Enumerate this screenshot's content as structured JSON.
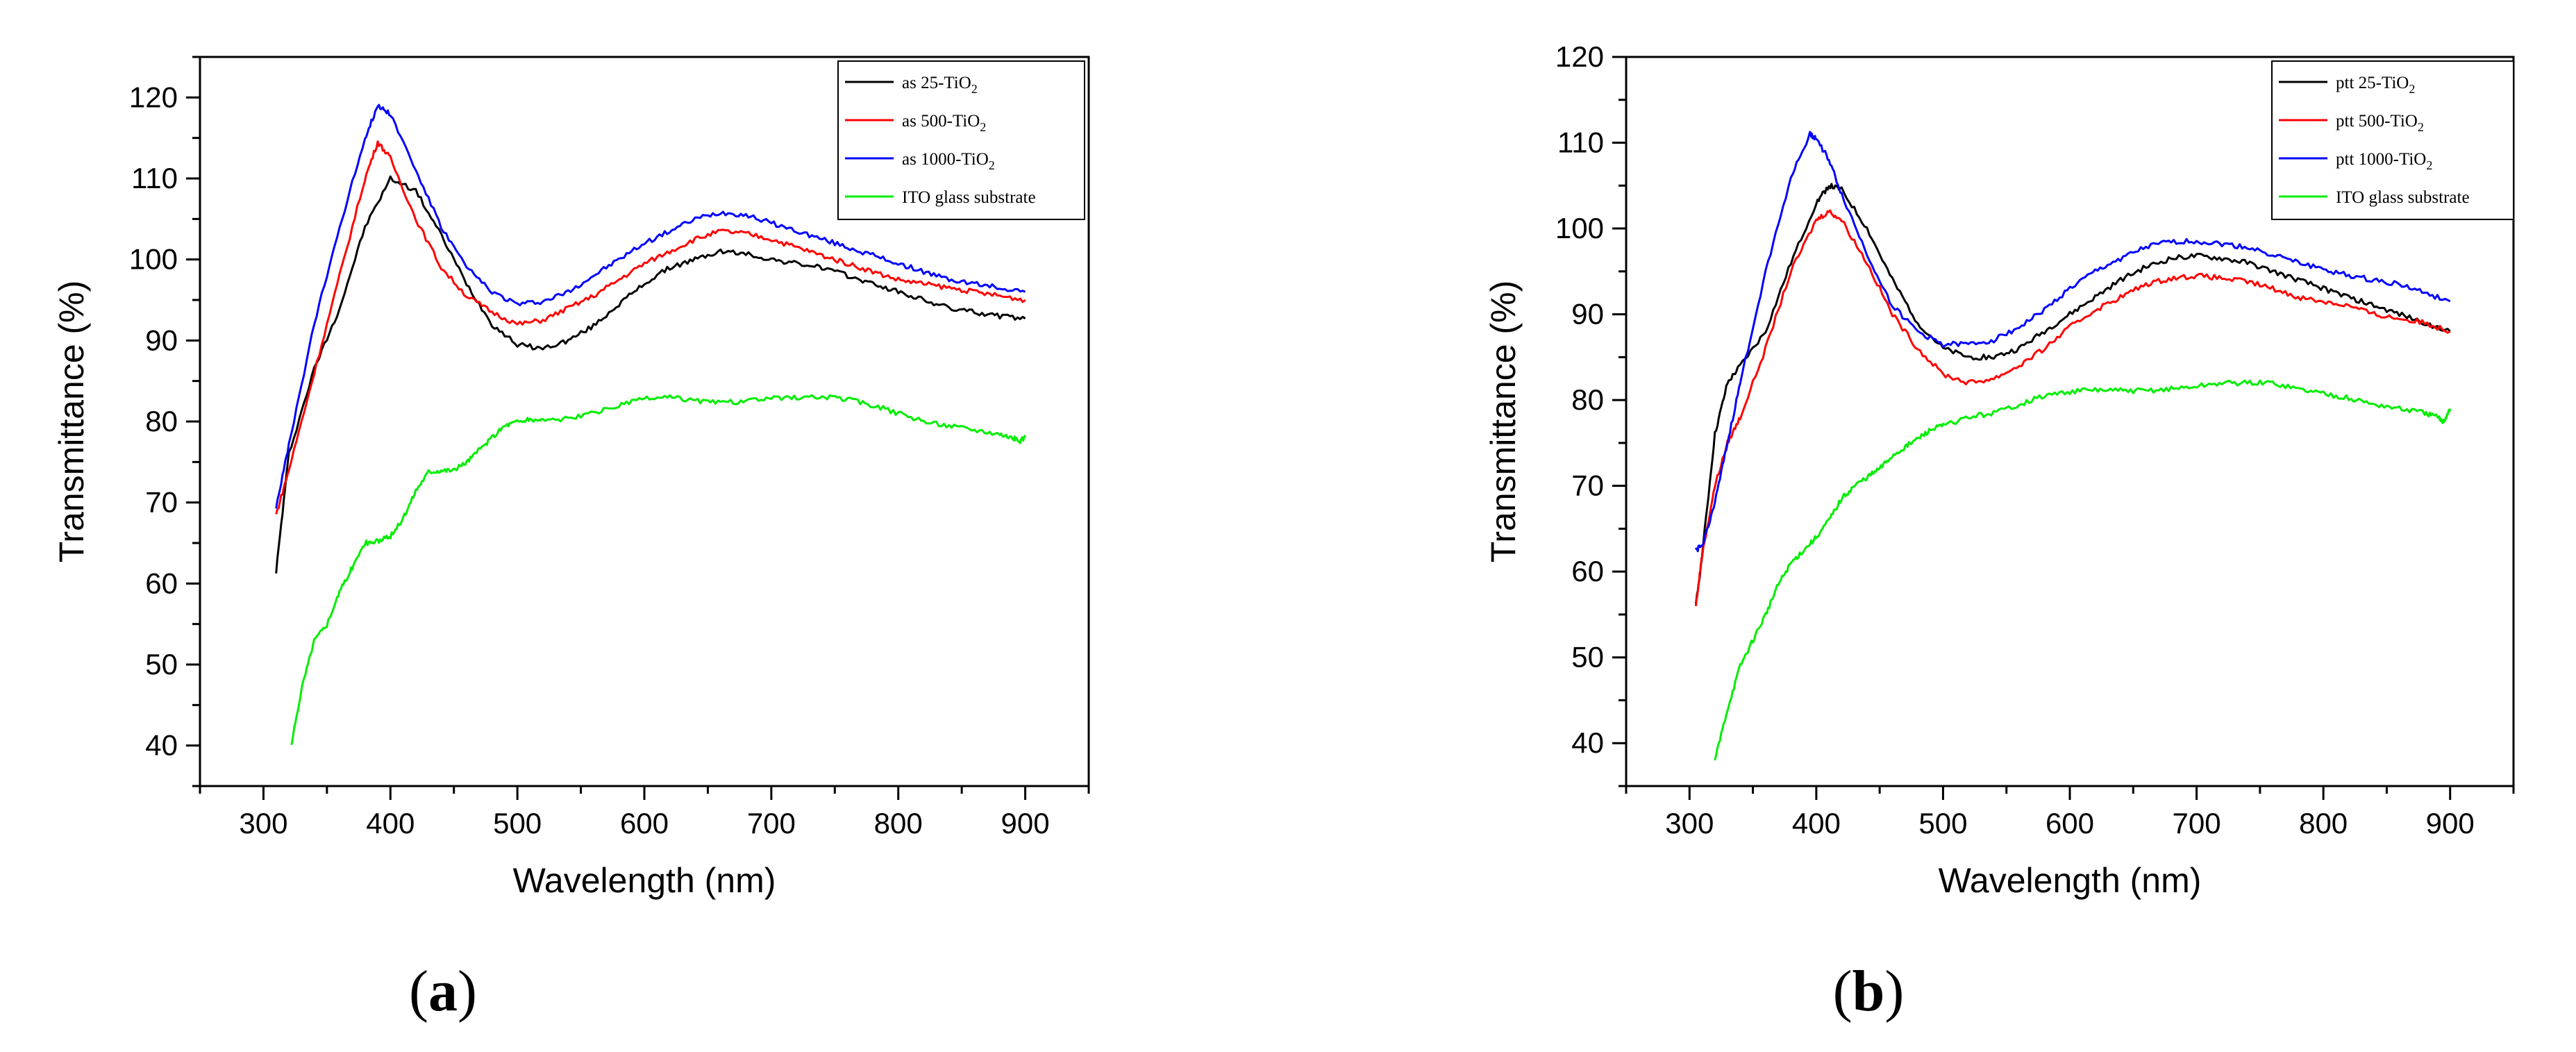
{
  "chart_data": [
    {
      "type": "line",
      "panel_label": "a",
      "title": "",
      "xlabel": "Wavelength (nm)",
      "ylabel": "Transmittance (%)",
      "xlim": [
        250,
        950
      ],
      "ylim": [
        35,
        125
      ],
      "x_ticks": [
        300,
        400,
        500,
        600,
        700,
        800,
        900
      ],
      "y_ticks": [
        40,
        50,
        60,
        70,
        80,
        90,
        100,
        110,
        120
      ],
      "legend_position": "top-right",
      "series": [
        {
          "name_main": "as 25-TiO",
          "name_sub": "2",
          "color": "#000000",
          "x": [
            310,
            320,
            340,
            360,
            380,
            400,
            420,
            440,
            460,
            480,
            500,
            520,
            540,
            560,
            580,
            600,
            620,
            640,
            660,
            680,
            700,
            720,
            740,
            760,
            780,
            800,
            820,
            840,
            860,
            880,
            900
          ],
          "y": [
            61.5,
            76,
            86.5,
            94,
            104,
            110,
            108.5,
            103,
            97,
            92,
            89.5,
            89,
            90,
            91.8,
            94.5,
            97,
            99,
            100,
            101,
            100.7,
            100,
            99.5,
            99,
            98,
            97,
            96,
            95,
            94,
            93.5,
            93,
            92.7
          ]
        },
        {
          "name_main": "as 500-TiO",
          "name_sub": "2",
          "color": "#ff0000",
          "x": [
            310,
            320,
            340,
            360,
            380,
            390,
            400,
            420,
            440,
            460,
            480,
            500,
            520,
            540,
            560,
            580,
            600,
            620,
            640,
            660,
            680,
            700,
            720,
            740,
            760,
            780,
            800,
            820,
            840,
            860,
            880,
            900
          ],
          "y": [
            68.5,
            74,
            86,
            98,
            110,
            114.5,
            112.5,
            105,
            99,
            95.5,
            93.5,
            92,
            92.5,
            94,
            95.5,
            97.5,
            99.5,
            101,
            102.5,
            103.5,
            103.2,
            102.5,
            101.5,
            100.5,
            99.5,
            98.5,
            97.5,
            97,
            96.5,
            96,
            95.5,
            95
          ]
        },
        {
          "name_main": "as 1000-TiO",
          "name_sub": "2",
          "color": "#0000ff",
          "x": [
            310,
            320,
            340,
            360,
            380,
            390,
            400,
            420,
            440,
            460,
            480,
            500,
            520,
            540,
            560,
            580,
            600,
            620,
            640,
            660,
            680,
            700,
            720,
            740,
            760,
            780,
            800,
            820,
            840,
            860,
            880,
            900
          ],
          "y": [
            69.5,
            77,
            92,
            104,
            115,
            119,
            118,
            111,
            104,
            99,
            96,
            94.5,
            94.8,
            96,
            98,
            100,
            102,
            103.5,
            105,
            105.8,
            105.5,
            104.5,
            103.5,
            102.5,
            101.5,
            100.5,
            99.5,
            98.5,
            97.5,
            97,
            96.5,
            96
          ]
        },
        {
          "name_main": "ITO glass substrate",
          "name_sub": "",
          "color": "#00ee00",
          "x": [
            322,
            330,
            340,
            350,
            360,
            370,
            380,
            390,
            400,
            410,
            420,
            430,
            440,
            450,
            460,
            470,
            480,
            490,
            500,
            510,
            520,
            540,
            560,
            580,
            600,
            620,
            640,
            660,
            680,
            700,
            720,
            740,
            760,
            780,
            800,
            820,
            840,
            860,
            880,
            890,
            895,
            900
          ],
          "y": [
            40,
            47,
            53,
            55,
            59,
            62,
            65,
            65.2,
            65.8,
            68,
            71.5,
            73.8,
            74,
            74,
            75,
            76.5,
            78,
            79.5,
            80,
            80.2,
            80.2,
            80.3,
            81,
            82,
            82.8,
            83,
            82.6,
            82.3,
            82.5,
            82.8,
            83,
            83,
            82.8,
            82,
            81,
            80,
            79.5,
            79,
            78.5,
            78,
            77.5,
            78
          ]
        }
      ]
    },
    {
      "type": "line",
      "panel_label": "b",
      "title": "",
      "xlabel": "Wavelength (nm)",
      "ylabel": "Transmittance (%)",
      "xlim": [
        250,
        950
      ],
      "ylim": [
        35,
        120
      ],
      "x_ticks": [
        300,
        400,
        500,
        600,
        700,
        800,
        900
      ],
      "y_ticks": [
        40,
        50,
        60,
        70,
        80,
        90,
        100,
        110,
        120
      ],
      "legend_position": "top-right",
      "series": [
        {
          "name_main": "ptt 25-TiO",
          "name_sub": "2",
          "color": "#000000",
          "x": [
            305,
            310,
            320,
            330,
            340,
            360,
            380,
            400,
            410,
            420,
            440,
            460,
            480,
            500,
            520,
            540,
            560,
            580,
            600,
            620,
            640,
            660,
            680,
            700,
            720,
            740,
            760,
            780,
            800,
            820,
            840,
            860,
            880,
            900
          ],
          "y": [
            56,
            62,
            76,
            82,
            84,
            88,
            96,
            103,
            105,
            104.5,
            100,
            94,
            89,
            86,
            85,
            85,
            86,
            88,
            90,
            92,
            94,
            95.5,
            96.5,
            96.8,
            96.5,
            96,
            95,
            94,
            93,
            92,
            91,
            90,
            89,
            88
          ]
        },
        {
          "name_main": "ptt 500-TiO",
          "name_sub": "2",
          "color": "#ff0000",
          "x": [
            305,
            310,
            320,
            330,
            340,
            360,
            380,
            400,
            410,
            420,
            440,
            460,
            480,
            500,
            520,
            540,
            560,
            580,
            600,
            620,
            640,
            660,
            680,
            700,
            720,
            740,
            760,
            780,
            800,
            820,
            840,
            860,
            880,
            900
          ],
          "y": [
            56,
            62,
            70,
            75,
            78,
            86,
            95,
            101,
            102,
            101,
            96,
            90,
            86,
            83,
            82,
            82.5,
            84,
            86,
            88.5,
            90.5,
            92,
            93.5,
            94.2,
            94.5,
            94.2,
            93.8,
            93,
            92,
            91.5,
            91,
            90,
            89.5,
            89,
            88
          ]
        },
        {
          "name_main": "ptt 1000-TiO",
          "name_sub": "2",
          "color": "#0000ff",
          "x": [
            305,
            310,
            320,
            330,
            340,
            360,
            380,
            395,
            400,
            410,
            420,
            440,
            460,
            480,
            500,
            520,
            540,
            560,
            580,
            600,
            620,
            640,
            660,
            680,
            700,
            720,
            740,
            760,
            780,
            800,
            820,
            840,
            860,
            880,
            900
          ],
          "y": [
            62.5,
            63,
            68,
            75,
            82,
            95,
            106,
            111,
            110.5,
            108,
            104,
            97,
            91,
            88,
            86.5,
            86.5,
            87,
            88.5,
            90.5,
            93,
            95,
            96.5,
            97.8,
            98.5,
            98.5,
            98.2,
            97.8,
            97,
            96,
            95.3,
            94.5,
            94,
            93.5,
            92.5,
            91.5
          ]
        },
        {
          "name_main": "ITO glass substrate",
          "name_sub": "",
          "color": "#00ee00",
          "x": [
            320,
            330,
            340,
            350,
            360,
            370,
            380,
            390,
            400,
            410,
            420,
            430,
            440,
            450,
            460,
            470,
            480,
            490,
            500,
            520,
            540,
            560,
            580,
            600,
            620,
            640,
            660,
            680,
            700,
            720,
            740,
            760,
            780,
            800,
            820,
            840,
            860,
            880,
            890,
            895,
            900
          ],
          "y": [
            38,
            44,
            49,
            52,
            55,
            58.5,
            61,
            62.5,
            64,
            66,
            68.5,
            70,
            71,
            72,
            73.5,
            74.5,
            75.5,
            76.5,
            77,
            78,
            78.5,
            79.5,
            80.5,
            81,
            81.2,
            81.1,
            81.1,
            81.3,
            81.6,
            82,
            82,
            82,
            81.3,
            80.8,
            80.2,
            79.5,
            79,
            78.5,
            78,
            77.5,
            79
          ]
        }
      ]
    }
  ]
}
